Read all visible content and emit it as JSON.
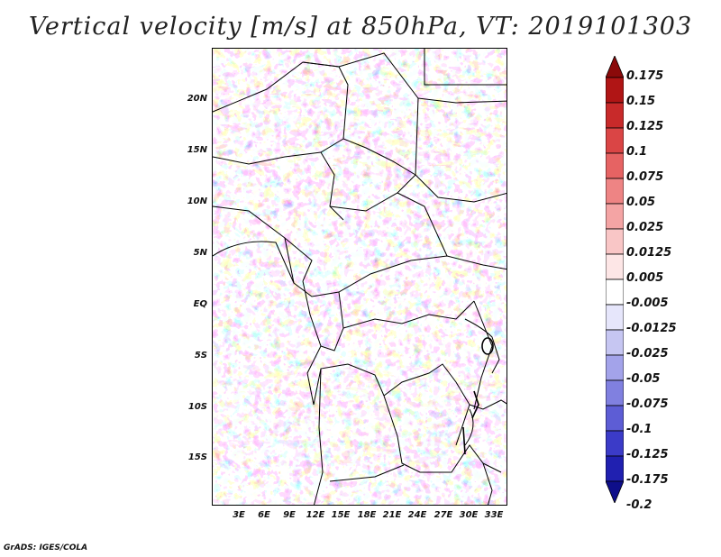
{
  "title": "Vertical velocity [m/s] at 850hPa, VT: 2019101303",
  "footer": "GrADS: IGES/COLA",
  "map": {
    "lat_labels": [
      "20N",
      "15N",
      "10N",
      "5N",
      "EQ",
      "5S",
      "10S",
      "15S"
    ],
    "lon_labels": [
      "3E",
      "6E",
      "9E",
      "12E",
      "15E",
      "18E",
      "21E",
      "24E",
      "27E",
      "30E",
      "33E"
    ]
  },
  "colorbar": {
    "labels": [
      "0.175",
      "0.15",
      "0.125",
      "0.1",
      "0.075",
      "0.05",
      "0.025",
      "0.0125",
      "0.005",
      "-0.005",
      "-0.0125",
      "-0.025",
      "-0.05",
      "-0.075",
      "-0.1",
      "-0.125",
      "-0.175",
      "-0.2"
    ],
    "colors": [
      "#8b0a0a",
      "#b01515",
      "#c82a2a",
      "#da4545",
      "#e66363",
      "#ee8484",
      "#f4a4a4",
      "#f9c6c6",
      "#fde6e6",
      "#ffffff",
      "#e6e6fb",
      "#c6c6f2",
      "#a3a3ea",
      "#8080e0",
      "#5d5dd5",
      "#3b3bc8",
      "#2020b0",
      "#0e0e8a"
    ]
  },
  "colors": {
    "positive": "#e05050",
    "negative": "#5050e0",
    "border": "#000000"
  }
}
